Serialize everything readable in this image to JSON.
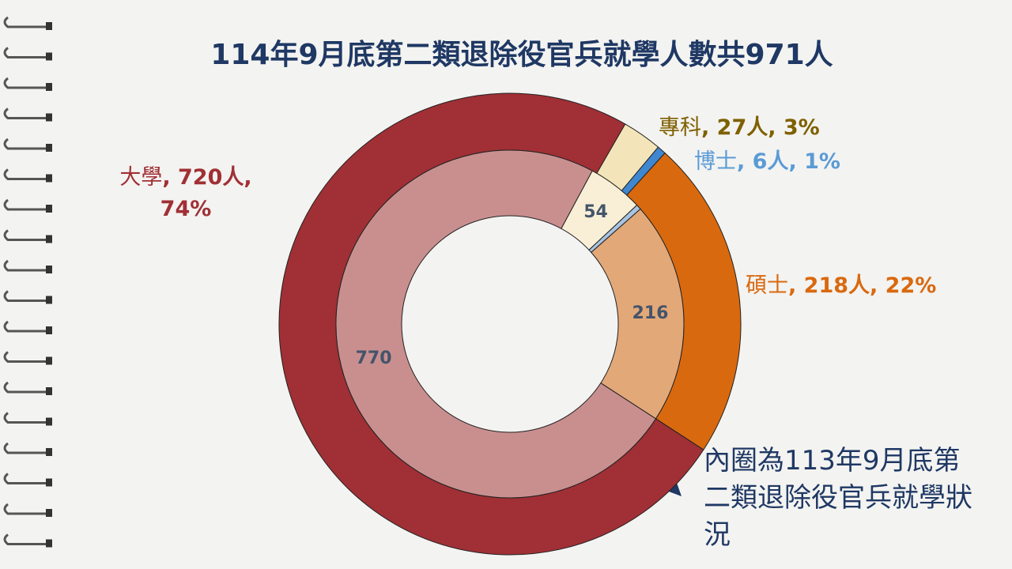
{
  "chart_data": {
    "type": "double-donut",
    "title": "114年9月底第二類退除役官兵就學人數共971人",
    "outer": {
      "values": [
        720,
        27,
        6,
        218
      ],
      "value_labels": [
        "大學, 720人, 74%",
        "專科, 27人, 3%",
        "博士, 6人, 1%",
        "碩士, 218人, 22%"
      ],
      "colors": [
        "#a03035",
        "#f3e5b9",
        "#3f87d0",
        "#d9690f"
      ],
      "label_colors": [
        "#a03035",
        "#7f6000",
        "#5b9bd5",
        "#d9690f"
      ]
    },
    "inner": {
      "values": [
        770,
        54,
        5,
        216
      ],
      "colors": [
        "#c98f8f",
        "#f8efd6",
        "#a9c4e0",
        "#e3a878"
      ]
    },
    "annotation": "內圈為113年9月底第二類退除役官兵就學狀況"
  }
}
